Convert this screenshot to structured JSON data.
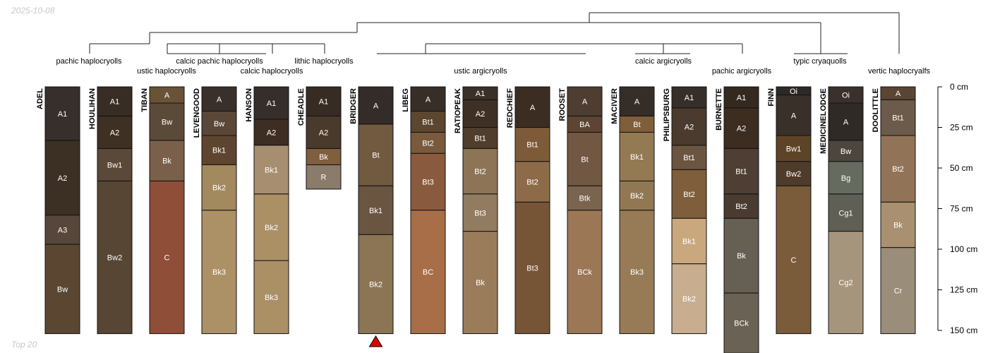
{
  "header": {
    "date": "2025-10-08"
  },
  "footer": {
    "note": "Top 20"
  },
  "chart_data": {
    "type": "soil-profile-sketch",
    "depth_unit": "cm",
    "depth_ticks": [
      0,
      25,
      50,
      75,
      100,
      125,
      150
    ],
    "depth_tick_labels": [
      "0 cm",
      "25 cm",
      "50 cm",
      "75 cm",
      "100 cm",
      "125 cm",
      "150 cm"
    ],
    "groups": [
      {
        "label": "pachic haplocryolls"
      },
      {
        "label": "ustic haplocryolls"
      },
      {
        "label": "calcic pachic haplocryolls"
      },
      {
        "label": "calcic haplocryolls"
      },
      {
        "label": "lithic haplocryolls"
      },
      {
        "label": "ustic argicryolls"
      },
      {
        "label": "calcic argicryolls"
      },
      {
        "label": "pachic argicryolls"
      },
      {
        "label": "typic cryaquolls"
      },
      {
        "label": "vertic haplocryalfs"
      }
    ],
    "marker": {
      "profile": "BRIDGER",
      "color": "#e00000"
    },
    "profiles": [
      {
        "name": "ADEL",
        "horizons": [
          {
            "name": "A1",
            "top": 0,
            "bottom": 33,
            "color": "#362f2b"
          },
          {
            "name": "A2",
            "top": 33,
            "bottom": 79,
            "color": "#3c2f24"
          },
          {
            "name": "A3",
            "top": 79,
            "bottom": 97,
            "color": "#56473a"
          },
          {
            "name": "Bw",
            "top": 97,
            "bottom": 152,
            "color": "#5b4632"
          }
        ]
      },
      {
        "name": "HOULIHAN",
        "horizons": [
          {
            "name": "A1",
            "top": 0,
            "bottom": 18,
            "color": "#382d25"
          },
          {
            "name": "A2",
            "top": 18,
            "bottom": 38,
            "color": "#3f3024"
          },
          {
            "name": "Bw1",
            "top": 38,
            "bottom": 58,
            "color": "#5a4838"
          },
          {
            "name": "Bw2",
            "top": 58,
            "bottom": 152,
            "color": "#574634"
          }
        ]
      },
      {
        "name": "TIBAN",
        "horizons": [
          {
            "name": "A",
            "top": 0,
            "bottom": 10,
            "color": "#6a5236"
          },
          {
            "name": "Bw",
            "top": 10,
            "bottom": 33,
            "color": "#5c4a38"
          },
          {
            "name": "Bk",
            "top": 33,
            "bottom": 58,
            "color": "#7a604a"
          },
          {
            "name": "C",
            "top": 58,
            "bottom": 152,
            "color": "#8f4e37"
          }
        ]
      },
      {
        "name": "LEVENGOOD",
        "horizons": [
          {
            "name": "A",
            "top": 0,
            "bottom": 15,
            "color": "#3a302b"
          },
          {
            "name": "Bw",
            "top": 15,
            "bottom": 30,
            "color": "#5a4738"
          },
          {
            "name": "Bk1",
            "top": 30,
            "bottom": 48,
            "color": "#5e4530"
          },
          {
            "name": "Bk2",
            "top": 48,
            "bottom": 76,
            "color": "#a38a5e"
          },
          {
            "name": "Bk3",
            "top": 76,
            "bottom": 152,
            "color": "#ad9166"
          }
        ]
      },
      {
        "name": "HANSON",
        "horizons": [
          {
            "name": "A1",
            "top": 0,
            "bottom": 20,
            "color": "#362e2a"
          },
          {
            "name": "A2",
            "top": 20,
            "bottom": 36,
            "color": "#3d2d22"
          },
          {
            "name": "Bk1",
            "top": 36,
            "bottom": 66,
            "color": "#a88e70"
          },
          {
            "name": "Bk2",
            "top": 66,
            "bottom": 107,
            "color": "#ab9066"
          },
          {
            "name": "Bk3",
            "top": 107,
            "bottom": 152,
            "color": "#ab9066"
          }
        ]
      },
      {
        "name": "CHEADLE",
        "horizons": [
          {
            "name": "A1",
            "top": 0,
            "bottom": 18,
            "color": "#372c24"
          },
          {
            "name": "A2",
            "top": 18,
            "bottom": 38,
            "color": "#4a3a2c"
          },
          {
            "name": "Bk",
            "top": 38,
            "bottom": 48,
            "color": "#7f5f3e"
          },
          {
            "name": "R",
            "top": 48,
            "bottom": 63,
            "color": "#8a7b6a"
          }
        ]
      },
      {
        "name": "BRIDGER",
        "horizons": [
          {
            "name": "A",
            "top": 0,
            "bottom": 23,
            "color": "#332c28"
          },
          {
            "name": "Bt",
            "top": 23,
            "bottom": 61,
            "color": "#715a40"
          },
          {
            "name": "Bk1",
            "top": 61,
            "bottom": 91,
            "color": "#6a5540"
          },
          {
            "name": "Bk2",
            "top": 91,
            "bottom": 152,
            "color": "#8b7555"
          }
        ]
      },
      {
        "name": "LIBEG",
        "horizons": [
          {
            "name": "A",
            "top": 0,
            "bottom": 15,
            "color": "#382e28"
          },
          {
            "name": "Bt1",
            "top": 15,
            "bottom": 28,
            "color": "#5c4630"
          },
          {
            "name": "Bt2",
            "top": 28,
            "bottom": 41,
            "color": "#7a5a3c"
          },
          {
            "name": "Bt3",
            "top": 41,
            "bottom": 76,
            "color": "#8a5a3e"
          },
          {
            "name": "BC",
            "top": 76,
            "bottom": 152,
            "color": "#a86e48"
          }
        ]
      },
      {
        "name": "RATIOPEAK",
        "horizons": [
          {
            "name": "A1",
            "top": 0,
            "bottom": 8,
            "color": "#3a302a"
          },
          {
            "name": "A2",
            "top": 8,
            "bottom": 25,
            "color": "#3e3024"
          },
          {
            "name": "Bt1",
            "top": 25,
            "bottom": 38,
            "color": "#503d2c"
          },
          {
            "name": "Bt2",
            "top": 38,
            "bottom": 66,
            "color": "#8d7456"
          },
          {
            "name": "Bt3",
            "top": 66,
            "bottom": 89,
            "color": "#917c61"
          },
          {
            "name": "Bk",
            "top": 89,
            "bottom": 152,
            "color": "#9b7c5a"
          }
        ]
      },
      {
        "name": "REDCHIEF",
        "horizons": [
          {
            "name": "A",
            "top": 0,
            "bottom": 25,
            "color": "#3b2d22"
          },
          {
            "name": "Bt1",
            "top": 25,
            "bottom": 46,
            "color": "#7d5b38"
          },
          {
            "name": "Bt2",
            "top": 46,
            "bottom": 71,
            "color": "#8d6b48"
          },
          {
            "name": "Bt3",
            "top": 71,
            "bottom": 152,
            "color": "#765536"
          }
        ]
      },
      {
        "name": "ROOSET",
        "horizons": [
          {
            "name": "A",
            "top": 0,
            "bottom": 18,
            "color": "#4e3e32"
          },
          {
            "name": "BA",
            "top": 18,
            "bottom": 28,
            "color": "#5e4533"
          },
          {
            "name": "Bt",
            "top": 28,
            "bottom": 61,
            "color": "#725742"
          },
          {
            "name": "Btk",
            "top": 61,
            "bottom": 76,
            "color": "#7a6450"
          },
          {
            "name": "BCk",
            "top": 76,
            "bottom": 152,
            "color": "#9c7756"
          }
        ]
      },
      {
        "name": "MACIVER",
        "horizons": [
          {
            "name": "A",
            "top": 0,
            "bottom": 18,
            "color": "#352d28"
          },
          {
            "name": "Bt",
            "top": 18,
            "bottom": 28,
            "color": "#7f5e3a"
          },
          {
            "name": "Bk1",
            "top": 28,
            "bottom": 58,
            "color": "#947a52"
          },
          {
            "name": "Bk2",
            "top": 58,
            "bottom": 76,
            "color": "#927852"
          },
          {
            "name": "Bk3",
            "top": 76,
            "bottom": 152,
            "color": "#977b56"
          }
        ]
      },
      {
        "name": "PHILIPSBURG",
        "horizons": [
          {
            "name": "A1",
            "top": 0,
            "bottom": 13,
            "color": "#362e29"
          },
          {
            "name": "A2",
            "top": 13,
            "bottom": 36,
            "color": "#4a3b2e"
          },
          {
            "name": "Bt1",
            "top": 36,
            "bottom": 51,
            "color": "#6c5540"
          },
          {
            "name": "Bt2",
            "top": 51,
            "bottom": 81,
            "color": "#7f5e3c"
          },
          {
            "name": "Bk1",
            "top": 81,
            "bottom": 109,
            "color": "#c9a87e"
          },
          {
            "name": "Bk2",
            "top": 109,
            "bottom": 152,
            "color": "#c8ae8e"
          }
        ]
      },
      {
        "name": "BURNETTE",
        "horizons": [
          {
            "name": "A1",
            "top": 0,
            "bottom": 13,
            "color": "#33291f"
          },
          {
            "name": "A2",
            "top": 13,
            "bottom": 38,
            "color": "#3d2c20"
          },
          {
            "name": "Bt1",
            "top": 38,
            "bottom": 66,
            "color": "#4e3e33"
          },
          {
            "name": "Bt2",
            "top": 66,
            "bottom": 81,
            "color": "#4a3b31"
          },
          {
            "name": "Bk",
            "top": 81,
            "bottom": 127,
            "color": "#665f53"
          },
          {
            "name": "BCk",
            "top": 127,
            "bottom": 164,
            "color": "#6a6355"
          }
        ]
      },
      {
        "name": "FINN",
        "horizons": [
          {
            "name": "Oi",
            "top": 0,
            "bottom": 5,
            "color": "#2e2926"
          },
          {
            "name": "A",
            "top": 5,
            "bottom": 30,
            "color": "#3a302a"
          },
          {
            "name": "Bw1",
            "top": 30,
            "bottom": 46,
            "color": "#5e4426"
          },
          {
            "name": "Bw2",
            "top": 46,
            "bottom": 61,
            "color": "#4f3b29"
          },
          {
            "name": "C",
            "top": 61,
            "bottom": 152,
            "color": "#7a5c3a"
          }
        ]
      },
      {
        "name": "MEDICINELODGE",
        "horizons": [
          {
            "name": "Oi",
            "top": 0,
            "bottom": 10,
            "color": "#3a312c"
          },
          {
            "name": "A",
            "top": 10,
            "bottom": 33,
            "color": "#302a26"
          },
          {
            "name": "Bw",
            "top": 33,
            "bottom": 46,
            "color": "#4d463f"
          },
          {
            "name": "Bg",
            "top": 46,
            "bottom": 66,
            "color": "#656b5f"
          },
          {
            "name": "Cg1",
            "top": 66,
            "bottom": 89,
            "color": "#5f5f55"
          },
          {
            "name": "Cg2",
            "top": 89,
            "bottom": 152,
            "color": "#a6957d"
          }
        ]
      },
      {
        "name": "DOOLITTLE",
        "horizons": [
          {
            "name": "A",
            "top": 0,
            "bottom": 8,
            "color": "#5a4534"
          },
          {
            "name": "Bt1",
            "top": 8,
            "bottom": 30,
            "color": "#6c5a4a"
          },
          {
            "name": "Bt2",
            "top": 30,
            "bottom": 71,
            "color": "#917458"
          },
          {
            "name": "Bk",
            "top": 71,
            "bottom": 99,
            "color": "#a89070"
          },
          {
            "name": "Cr",
            "top": 99,
            "bottom": 152,
            "color": "#9a8e7a"
          }
        ]
      }
    ]
  }
}
